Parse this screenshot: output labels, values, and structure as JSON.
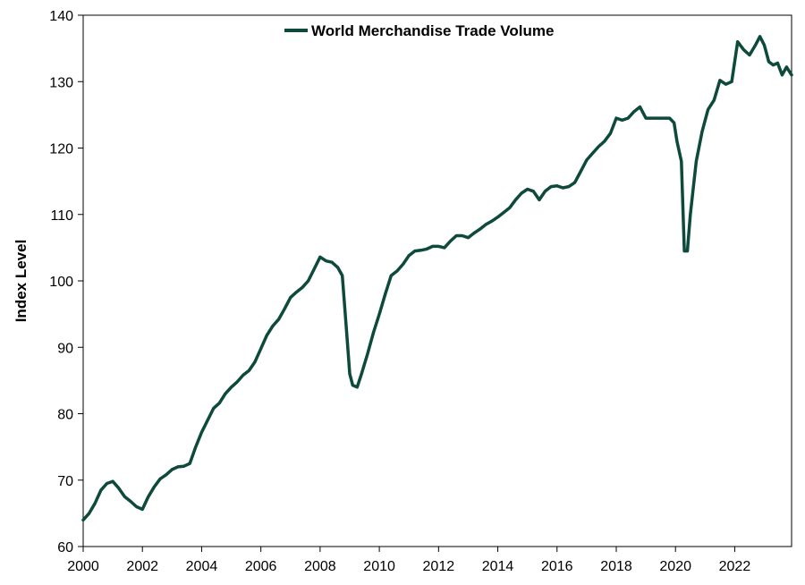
{
  "chart_data": {
    "type": "line",
    "title": "",
    "xlabel": "",
    "ylabel": "Index Level",
    "xlim": [
      2000,
      2023.92
    ],
    "ylim": [
      60,
      140
    ],
    "x_ticks": [
      2000,
      2002,
      2004,
      2006,
      2008,
      2010,
      2012,
      2014,
      2016,
      2018,
      2020,
      2022
    ],
    "x_tick_labels": [
      "2000",
      "2002",
      "2004",
      "2006",
      "2008",
      "2010",
      "2012",
      "2014",
      "2016",
      "2018",
      "2020",
      "2022"
    ],
    "y_ticks": [
      60,
      70,
      80,
      90,
      100,
      110,
      120,
      130,
      140
    ],
    "y_tick_labels": [
      "60",
      "70",
      "80",
      "90",
      "100",
      "110",
      "120",
      "130",
      "140"
    ],
    "grid": false,
    "legend_position": "top-center",
    "color": "#0d4a3b",
    "series": [
      {
        "name": "World Merchandise Trade Volume",
        "points": [
          [
            2000.0,
            64.0
          ],
          [
            2000.2,
            65.0
          ],
          [
            2000.4,
            66.5
          ],
          [
            2000.6,
            68.5
          ],
          [
            2000.8,
            69.5
          ],
          [
            2001.0,
            69.8
          ],
          [
            2001.2,
            68.8
          ],
          [
            2001.4,
            67.5
          ],
          [
            2001.6,
            66.8
          ],
          [
            2001.8,
            66.0
          ],
          [
            2002.0,
            65.6
          ],
          [
            2002.2,
            67.5
          ],
          [
            2002.4,
            69.0
          ],
          [
            2002.6,
            70.2
          ],
          [
            2002.8,
            70.8
          ],
          [
            2003.0,
            71.6
          ],
          [
            2003.2,
            72.0
          ],
          [
            2003.4,
            72.1
          ],
          [
            2003.6,
            72.5
          ],
          [
            2003.8,
            75.0
          ],
          [
            2004.0,
            77.2
          ],
          [
            2004.2,
            79.0
          ],
          [
            2004.4,
            80.8
          ],
          [
            2004.6,
            81.6
          ],
          [
            2004.8,
            83.0
          ],
          [
            2005.0,
            84.0
          ],
          [
            2005.2,
            84.8
          ],
          [
            2005.4,
            85.8
          ],
          [
            2005.6,
            86.5
          ],
          [
            2005.8,
            87.8
          ],
          [
            2006.0,
            89.8
          ],
          [
            2006.2,
            91.8
          ],
          [
            2006.4,
            93.2
          ],
          [
            2006.6,
            94.2
          ],
          [
            2006.8,
            95.8
          ],
          [
            2007.0,
            97.5
          ],
          [
            2007.2,
            98.3
          ],
          [
            2007.4,
            99.0
          ],
          [
            2007.6,
            100.0
          ],
          [
            2007.8,
            101.8
          ],
          [
            2008.0,
            103.6
          ],
          [
            2008.2,
            103.0
          ],
          [
            2008.4,
            102.8
          ],
          [
            2008.6,
            102.0
          ],
          [
            2008.75,
            100.8
          ],
          [
            2008.9,
            92.0
          ],
          [
            2009.0,
            86.0
          ],
          [
            2009.1,
            84.3
          ],
          [
            2009.25,
            84.0
          ],
          [
            2009.4,
            86.0
          ],
          [
            2009.6,
            89.0
          ],
          [
            2009.8,
            92.2
          ],
          [
            2010.0,
            95.0
          ],
          [
            2010.2,
            98.0
          ],
          [
            2010.4,
            100.8
          ],
          [
            2010.6,
            101.5
          ],
          [
            2010.8,
            102.5
          ],
          [
            2011.0,
            103.8
          ],
          [
            2011.2,
            104.5
          ],
          [
            2011.4,
            104.6
          ],
          [
            2011.6,
            104.8
          ],
          [
            2011.8,
            105.2
          ],
          [
            2012.0,
            105.2
          ],
          [
            2012.2,
            105.0
          ],
          [
            2012.4,
            106.0
          ],
          [
            2012.6,
            106.8
          ],
          [
            2012.8,
            106.8
          ],
          [
            2013.0,
            106.5
          ],
          [
            2013.2,
            107.2
          ],
          [
            2013.4,
            107.8
          ],
          [
            2013.6,
            108.5
          ],
          [
            2013.8,
            109.0
          ],
          [
            2014.0,
            109.6
          ],
          [
            2014.2,
            110.3
          ],
          [
            2014.4,
            111.0
          ],
          [
            2014.6,
            112.2
          ],
          [
            2014.8,
            113.2
          ],
          [
            2015.0,
            113.8
          ],
          [
            2015.2,
            113.5
          ],
          [
            2015.4,
            112.2
          ],
          [
            2015.6,
            113.5
          ],
          [
            2015.8,
            114.2
          ],
          [
            2016.0,
            114.3
          ],
          [
            2016.2,
            114.0
          ],
          [
            2016.4,
            114.2
          ],
          [
            2016.6,
            114.8
          ],
          [
            2016.8,
            116.5
          ],
          [
            2017.0,
            118.2
          ],
          [
            2017.2,
            119.2
          ],
          [
            2017.4,
            120.2
          ],
          [
            2017.6,
            121.0
          ],
          [
            2017.8,
            122.2
          ],
          [
            2018.0,
            124.5
          ],
          [
            2018.2,
            124.2
          ],
          [
            2018.4,
            124.5
          ],
          [
            2018.6,
            125.5
          ],
          [
            2018.8,
            126.2
          ],
          [
            2019.0,
            124.5
          ],
          [
            2019.2,
            124.5
          ],
          [
            2019.4,
            124.5
          ],
          [
            2019.6,
            124.5
          ],
          [
            2019.8,
            124.5
          ],
          [
            2019.95,
            123.8
          ],
          [
            2020.05,
            121.0
          ],
          [
            2020.2,
            118.0
          ],
          [
            2020.3,
            104.5
          ],
          [
            2020.4,
            104.5
          ],
          [
            2020.5,
            110.0
          ],
          [
            2020.7,
            118.0
          ],
          [
            2020.9,
            122.5
          ],
          [
            2021.1,
            125.8
          ],
          [
            2021.3,
            127.2
          ],
          [
            2021.5,
            130.2
          ],
          [
            2021.7,
            129.6
          ],
          [
            2021.9,
            130.0
          ],
          [
            2022.0,
            133.0
          ],
          [
            2022.1,
            136.0
          ],
          [
            2022.3,
            134.8
          ],
          [
            2022.5,
            134.0
          ],
          [
            2022.7,
            135.5
          ],
          [
            2022.85,
            136.8
          ],
          [
            2023.0,
            135.5
          ],
          [
            2023.15,
            133.0
          ],
          [
            2023.3,
            132.5
          ],
          [
            2023.45,
            132.8
          ],
          [
            2023.6,
            131.0
          ],
          [
            2023.75,
            132.2
          ],
          [
            2023.92,
            131.0
          ]
        ]
      }
    ]
  }
}
